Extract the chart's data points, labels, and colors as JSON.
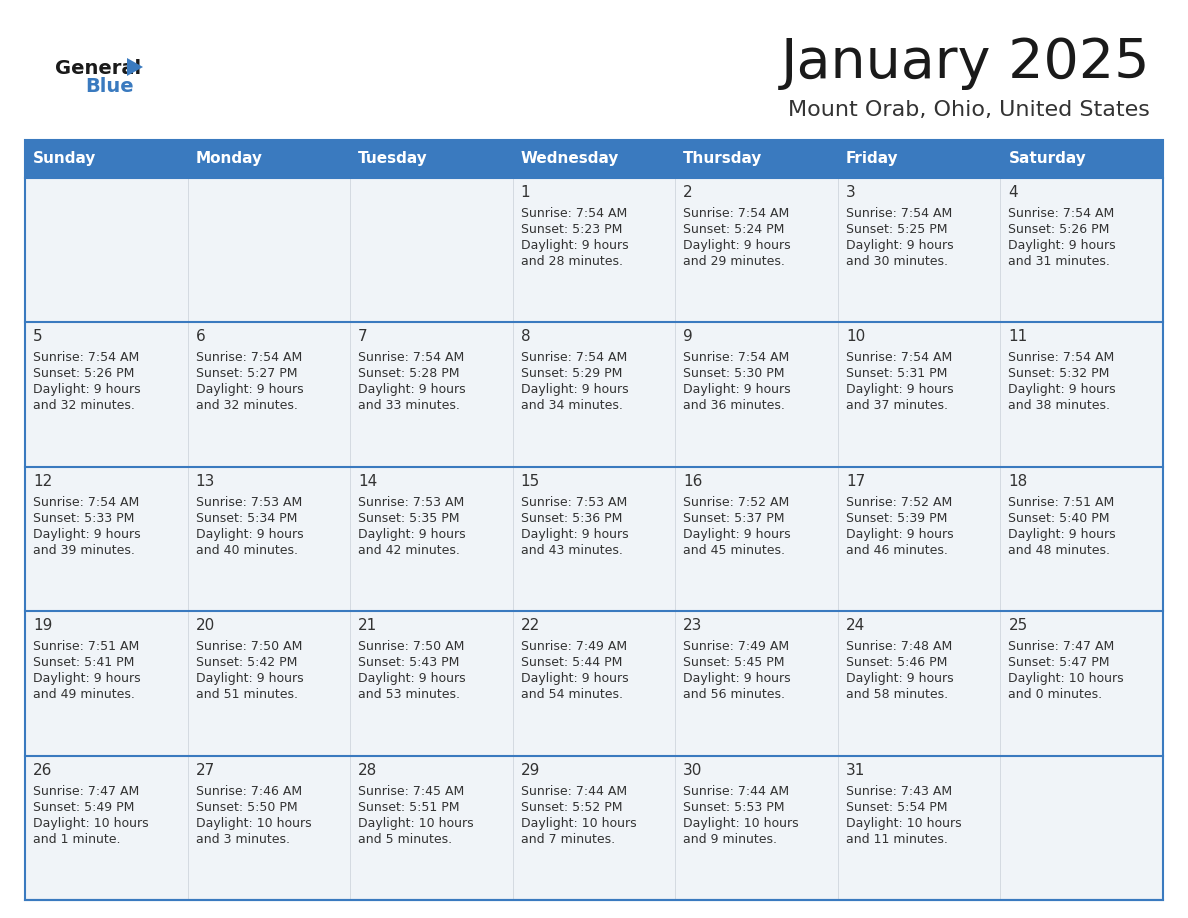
{
  "title": "January 2025",
  "subtitle": "Mount Orab, Ohio, United States",
  "header_bg_color": "#3a7abf",
  "header_text_color": "#ffffff",
  "cell_bg_color": "#f0f4f8",
  "cell_bg_white": "#ffffff",
  "days_of_week": [
    "Sunday",
    "Monday",
    "Tuesday",
    "Wednesday",
    "Thursday",
    "Friday",
    "Saturday"
  ],
  "title_color": "#1a1a1a",
  "subtitle_color": "#333333",
  "line_color": "#3a7abf",
  "text_color": "#333333",
  "logo_text_color": "#1a1a1a",
  "logo_blue_color": "#3a7abf",
  "calendar_data": [
    [
      {
        "day": "",
        "sunrise": "",
        "sunset": "",
        "daylight": ""
      },
      {
        "day": "",
        "sunrise": "",
        "sunset": "",
        "daylight": ""
      },
      {
        "day": "",
        "sunrise": "",
        "sunset": "",
        "daylight": ""
      },
      {
        "day": "1",
        "sunrise": "7:54 AM",
        "sunset": "5:23 PM",
        "daylight": "9 hours and 28 minutes."
      },
      {
        "day": "2",
        "sunrise": "7:54 AM",
        "sunset": "5:24 PM",
        "daylight": "9 hours and 29 minutes."
      },
      {
        "day": "3",
        "sunrise": "7:54 AM",
        "sunset": "5:25 PM",
        "daylight": "9 hours and 30 minutes."
      },
      {
        "day": "4",
        "sunrise": "7:54 AM",
        "sunset": "5:26 PM",
        "daylight": "9 hours and 31 minutes."
      }
    ],
    [
      {
        "day": "5",
        "sunrise": "7:54 AM",
        "sunset": "5:26 PM",
        "daylight": "9 hours and 32 minutes."
      },
      {
        "day": "6",
        "sunrise": "7:54 AM",
        "sunset": "5:27 PM",
        "daylight": "9 hours and 32 minutes."
      },
      {
        "day": "7",
        "sunrise": "7:54 AM",
        "sunset": "5:28 PM",
        "daylight": "9 hours and 33 minutes."
      },
      {
        "day": "8",
        "sunrise": "7:54 AM",
        "sunset": "5:29 PM",
        "daylight": "9 hours and 34 minutes."
      },
      {
        "day": "9",
        "sunrise": "7:54 AM",
        "sunset": "5:30 PM",
        "daylight": "9 hours and 36 minutes."
      },
      {
        "day": "10",
        "sunrise": "7:54 AM",
        "sunset": "5:31 PM",
        "daylight": "9 hours and 37 minutes."
      },
      {
        "day": "11",
        "sunrise": "7:54 AM",
        "sunset": "5:32 PM",
        "daylight": "9 hours and 38 minutes."
      }
    ],
    [
      {
        "day": "12",
        "sunrise": "7:54 AM",
        "sunset": "5:33 PM",
        "daylight": "9 hours and 39 minutes."
      },
      {
        "day": "13",
        "sunrise": "7:53 AM",
        "sunset": "5:34 PM",
        "daylight": "9 hours and 40 minutes."
      },
      {
        "day": "14",
        "sunrise": "7:53 AM",
        "sunset": "5:35 PM",
        "daylight": "9 hours and 42 minutes."
      },
      {
        "day": "15",
        "sunrise": "7:53 AM",
        "sunset": "5:36 PM",
        "daylight": "9 hours and 43 minutes."
      },
      {
        "day": "16",
        "sunrise": "7:52 AM",
        "sunset": "5:37 PM",
        "daylight": "9 hours and 45 minutes."
      },
      {
        "day": "17",
        "sunrise": "7:52 AM",
        "sunset": "5:39 PM",
        "daylight": "9 hours and 46 minutes."
      },
      {
        "day": "18",
        "sunrise": "7:51 AM",
        "sunset": "5:40 PM",
        "daylight": "9 hours and 48 minutes."
      }
    ],
    [
      {
        "day": "19",
        "sunrise": "7:51 AM",
        "sunset": "5:41 PM",
        "daylight": "9 hours and 49 minutes."
      },
      {
        "day": "20",
        "sunrise": "7:50 AM",
        "sunset": "5:42 PM",
        "daylight": "9 hours and 51 minutes."
      },
      {
        "day": "21",
        "sunrise": "7:50 AM",
        "sunset": "5:43 PM",
        "daylight": "9 hours and 53 minutes."
      },
      {
        "day": "22",
        "sunrise": "7:49 AM",
        "sunset": "5:44 PM",
        "daylight": "9 hours and 54 minutes."
      },
      {
        "day": "23",
        "sunrise": "7:49 AM",
        "sunset": "5:45 PM",
        "daylight": "9 hours and 56 minutes."
      },
      {
        "day": "24",
        "sunrise": "7:48 AM",
        "sunset": "5:46 PM",
        "daylight": "9 hours and 58 minutes."
      },
      {
        "day": "25",
        "sunrise": "7:47 AM",
        "sunset": "5:47 PM",
        "daylight": "10 hours and 0 minutes."
      }
    ],
    [
      {
        "day": "26",
        "sunrise": "7:47 AM",
        "sunset": "5:49 PM",
        "daylight": "10 hours and 1 minute."
      },
      {
        "day": "27",
        "sunrise": "7:46 AM",
        "sunset": "5:50 PM",
        "daylight": "10 hours and 3 minutes."
      },
      {
        "day": "28",
        "sunrise": "7:45 AM",
        "sunset": "5:51 PM",
        "daylight": "10 hours and 5 minutes."
      },
      {
        "day": "29",
        "sunrise": "7:44 AM",
        "sunset": "5:52 PM",
        "daylight": "10 hours and 7 minutes."
      },
      {
        "day": "30",
        "sunrise": "7:44 AM",
        "sunset": "5:53 PM",
        "daylight": "10 hours and 9 minutes."
      },
      {
        "day": "31",
        "sunrise": "7:43 AM",
        "sunset": "5:54 PM",
        "daylight": "10 hours and 11 minutes."
      },
      {
        "day": "",
        "sunrise": "",
        "sunset": "",
        "daylight": ""
      }
    ]
  ]
}
